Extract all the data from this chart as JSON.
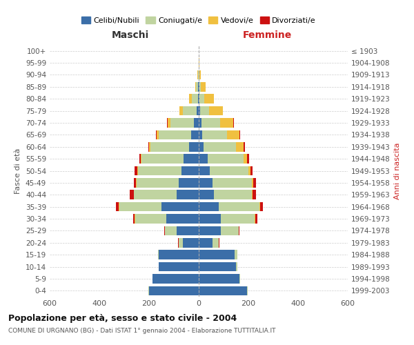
{
  "age_groups_bottom_to_top": [
    "0-4",
    "5-9",
    "10-14",
    "15-19",
    "20-24",
    "25-29",
    "30-34",
    "35-39",
    "40-44",
    "45-49",
    "50-54",
    "55-59",
    "60-64",
    "65-69",
    "70-74",
    "75-79",
    "80-84",
    "85-89",
    "90-94",
    "95-99",
    "100+"
  ],
  "birth_years_bottom_to_top": [
    "1999-2003",
    "1994-1998",
    "1989-1993",
    "1984-1988",
    "1979-1983",
    "1974-1978",
    "1969-1973",
    "1964-1968",
    "1959-1963",
    "1954-1958",
    "1949-1953",
    "1944-1948",
    "1939-1943",
    "1934-1938",
    "1929-1933",
    "1924-1928",
    "1919-1923",
    "1914-1918",
    "1909-1913",
    "1904-1908",
    "≤ 1903"
  ],
  "males": {
    "celibi": [
      200,
      185,
      160,
      160,
      65,
      90,
      130,
      150,
      90,
      80,
      70,
      60,
      40,
      30,
      20,
      8,
      4,
      2,
      1,
      0,
      0
    ],
    "coniugati": [
      2,
      2,
      2,
      5,
      15,
      45,
      125,
      170,
      170,
      170,
      175,
      170,
      155,
      130,
      95,
      55,
      25,
      8,
      3,
      1,
      0
    ],
    "vedovi": [
      0,
      0,
      0,
      0,
      1,
      1,
      2,
      2,
      2,
      2,
      2,
      3,
      5,
      10,
      10,
      15,
      10,
      5,
      1,
      0,
      0
    ],
    "divorziati": [
      0,
      0,
      0,
      0,
      1,
      2,
      8,
      10,
      15,
      10,
      10,
      5,
      3,
      3,
      2,
      1,
      0,
      0,
      0,
      0,
      0
    ]
  },
  "females": {
    "nubili": [
      195,
      165,
      150,
      145,
      55,
      90,
      90,
      80,
      60,
      55,
      45,
      35,
      20,
      15,
      10,
      6,
      4,
      2,
      1,
      0,
      0
    ],
    "coniugate": [
      2,
      2,
      5,
      10,
      25,
      70,
      135,
      165,
      155,
      160,
      155,
      145,
      130,
      100,
      75,
      35,
      18,
      5,
      3,
      1,
      0
    ],
    "vedove": [
      0,
      0,
      0,
      0,
      1,
      1,
      2,
      2,
      3,
      5,
      8,
      15,
      30,
      50,
      55,
      55,
      40,
      20,
      5,
      1,
      0
    ],
    "divorziate": [
      0,
      0,
      0,
      0,
      1,
      3,
      10,
      12,
      12,
      10,
      10,
      8,
      5,
      3,
      2,
      1,
      0,
      0,
      0,
      0,
      0
    ]
  },
  "colors": {
    "celibi": "#3b6ea8",
    "coniugati": "#c0d4a0",
    "vedovi": "#f0c040",
    "divorziati": "#cc1111"
  },
  "xlim": 600,
  "title": "Popolazione per età, sesso e stato civile - 2004",
  "subtitle": "COMUNE DI URGNANO (BG) - Dati ISTAT 1° gennaio 2004 - Elaborazione TUTTITALIA.IT",
  "ylabel_left": "Fasce di età",
  "ylabel_right": "Anni di nascita",
  "xlabel_left": "Maschi",
  "xlabel_right": "Femmine"
}
